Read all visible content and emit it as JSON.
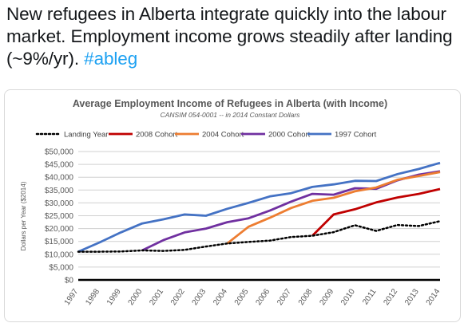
{
  "tweet": {
    "text": "New refugees in Alberta integrate quickly into the labour market. Employment income grows steadily after landing (~9%/yr).",
    "hashtag": "#ableg"
  },
  "colors": {
    "hashtag": "#1da1f2",
    "landing": "#000000",
    "c2008": "#c00000",
    "c2004": "#ed7d31",
    "c2000": "#7030a0",
    "c1997": "#4472c4"
  },
  "chart_data": {
    "type": "line",
    "title": "Average Employment  Income of Refugees in Alberta (with Income)",
    "subtitle": "CANSIM 054-0001 -- in 2014 Constant Dollars",
    "xlabel": "",
    "ylabel": "Dollars per Year ($2014)",
    "ylim": [
      0,
      50000
    ],
    "yticks": [
      "$50,000",
      "$45,000",
      "$40,000",
      "$35,000",
      "$30,000",
      "$25,000",
      "$20,000",
      "$15,000",
      "$10,000",
      "$5,000",
      "$0"
    ],
    "categories": [
      "1997",
      "1998",
      "1999",
      "2000",
      "2001",
      "2002",
      "2003",
      "2004",
      "2005",
      "2006",
      "2007",
      "2008",
      "2009",
      "2010",
      "2011",
      "2012",
      "2013",
      "2014"
    ],
    "grid": true,
    "legend_position": "top",
    "series": [
      {
        "name": "Landing Year",
        "style": "dotted",
        "color_key": "landing",
        "values": [
          11000,
          11000,
          11100,
          11500,
          11300,
          11700,
          13000,
          14200,
          14800,
          15300,
          16700,
          17200,
          18600,
          21300,
          19100,
          21400,
          21000,
          22900
        ]
      },
      {
        "name": "2008 Cohort",
        "style": "solid",
        "color_key": "c2008",
        "values": [
          null,
          null,
          null,
          null,
          null,
          null,
          null,
          null,
          null,
          null,
          null,
          17200,
          25500,
          27500,
          30200,
          32100,
          33500,
          35400
        ]
      },
      {
        "name": "2004 Cohort",
        "style": "solid",
        "color_key": "c2004",
        "values": [
          null,
          null,
          null,
          null,
          null,
          null,
          null,
          14200,
          20700,
          24200,
          28000,
          30800,
          32000,
          34500,
          36000,
          39000,
          40500,
          42000
        ]
      },
      {
        "name": "2000 Cohort",
        "style": "solid",
        "color_key": "c2000",
        "values": [
          null,
          null,
          null,
          11500,
          15500,
          18500,
          20000,
          22500,
          24000,
          27000,
          30500,
          33500,
          33200,
          35700,
          35500,
          38800,
          41000,
          42300
        ]
      },
      {
        "name": "1997 Cohort",
        "style": "solid",
        "color_key": "c1997",
        "values": [
          11000,
          14600,
          18500,
          22000,
          23600,
          25500,
          25000,
          27700,
          30000,
          32500,
          33800,
          36200,
          37200,
          38600,
          38500,
          41200,
          43200,
          45600
        ]
      }
    ]
  }
}
